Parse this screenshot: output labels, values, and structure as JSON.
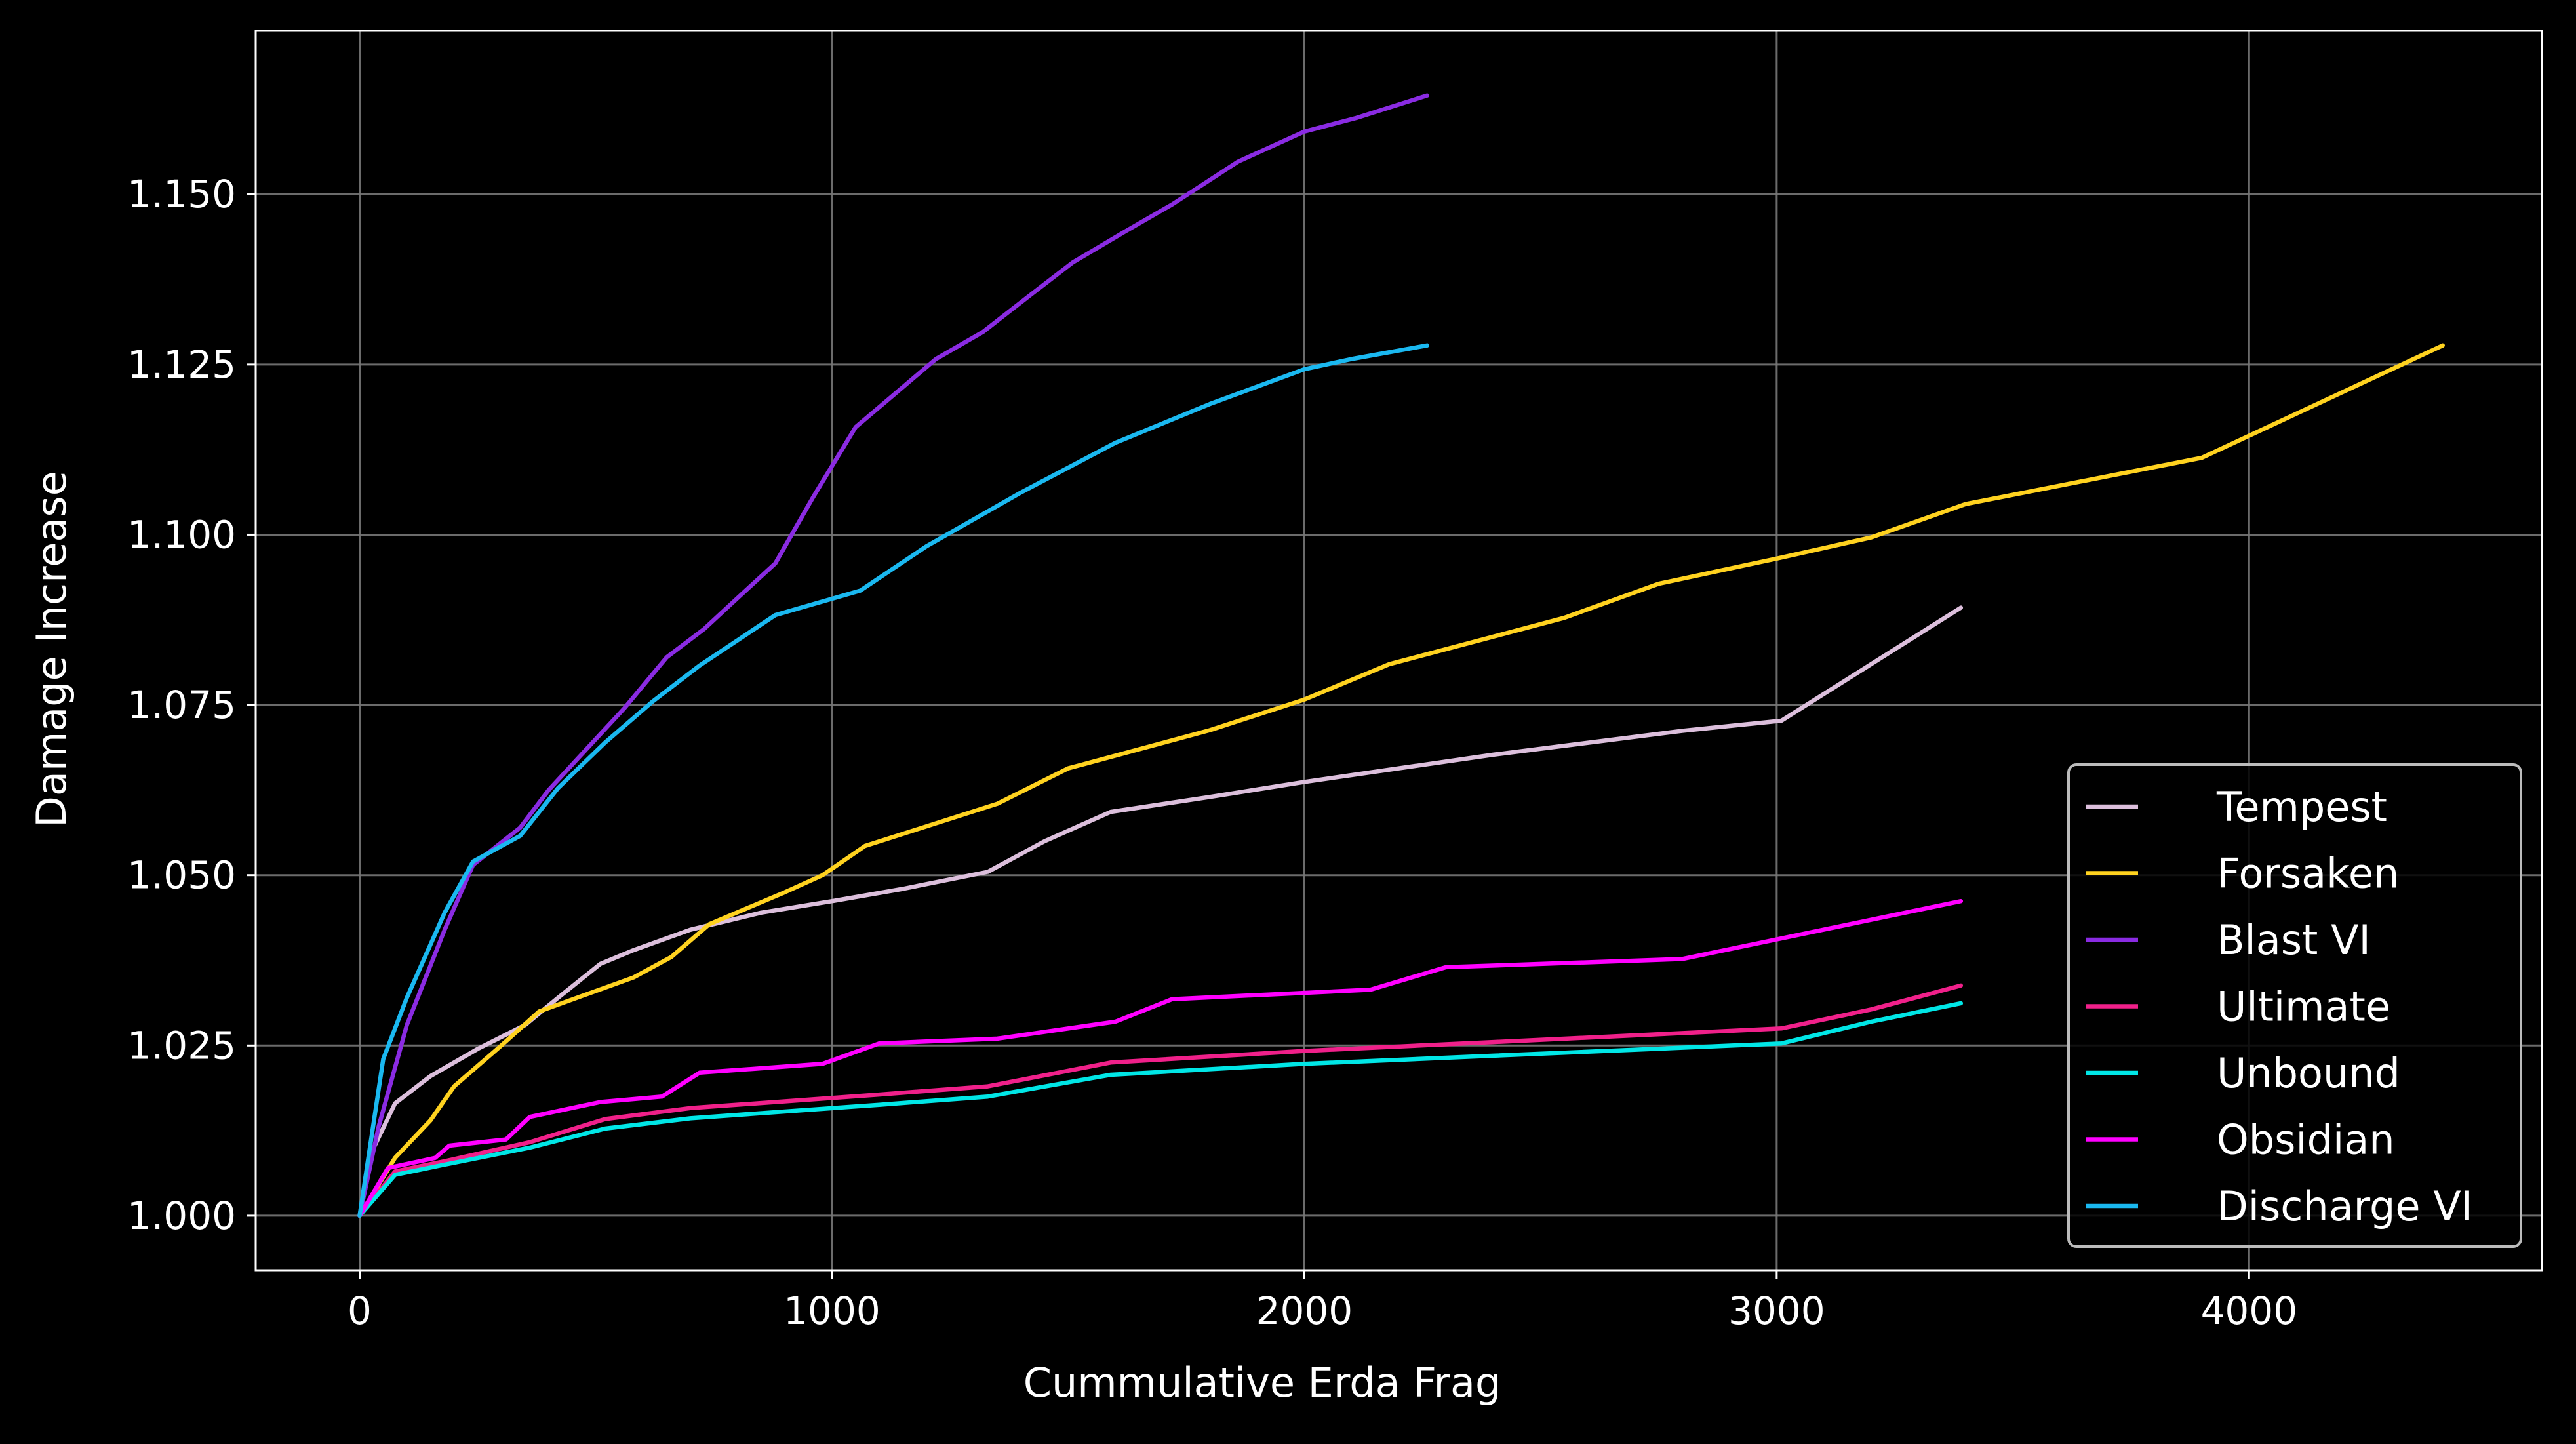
{
  "chart_data": {
    "type": "line",
    "title": "",
    "xlabel": "Cummulative Erda Frag",
    "ylabel": "Damage Increase",
    "xlim": [
      -220,
      4620
    ],
    "ylim": [
      0.992,
      1.174
    ],
    "xticks": [
      0,
      1000,
      2000,
      3000,
      4000
    ],
    "xtick_labels": [
      "0",
      "1000",
      "2000",
      "3000",
      "4000"
    ],
    "yticks": [
      1.0,
      1.025,
      1.05,
      1.075,
      1.1,
      1.125,
      1.15
    ],
    "ytick_labels": [
      "1.000",
      "1.025",
      "1.050",
      "1.075",
      "1.100",
      "1.125",
      "1.150"
    ],
    "grid": true,
    "legend_position": "lower-right",
    "colors": {
      "background": "#000000",
      "axes": "#ffffff",
      "grid": "#777777",
      "legend_border": "#bbbbbb"
    },
    "series": [
      {
        "name": "Tempest",
        "color": "#dcbfdc",
        "x": [
          0,
          30,
          75,
          150,
          250,
          350,
          420,
          510,
          580,
          700,
          850,
          1000,
          1150,
          1330,
          1450,
          1590,
          1800,
          2000,
          2400,
          2800,
          3010,
          3200,
          3390
        ],
        "y": [
          1.0,
          1.01,
          1.0165,
          1.0205,
          1.0245,
          1.028,
          1.032,
          1.037,
          1.039,
          1.042,
          1.0445,
          1.0462,
          1.048,
          1.0505,
          1.055,
          1.0593,
          1.0615,
          1.0637,
          1.0677,
          1.0712,
          1.0727,
          1.081,
          1.0893
        ]
      },
      {
        "name": "Forsaken",
        "color": "#ffd21f",
        "x": [
          0,
          75,
          150,
          200,
          300,
          380,
          480,
          580,
          660,
          740,
          900,
          980,
          1070,
          1350,
          1500,
          1800,
          2000,
          2180,
          2550,
          2750,
          3000,
          3200,
          3400,
          3900,
          4410
        ],
        "y": [
          1.0,
          1.0085,
          1.014,
          1.019,
          1.025,
          1.03,
          1.0325,
          1.035,
          1.038,
          1.0428,
          1.0475,
          1.05,
          1.0543,
          1.0605,
          1.0657,
          1.0713,
          1.0758,
          1.081,
          1.0878,
          1.0928,
          1.0965,
          1.0996,
          1.1045,
          1.1113,
          1.1278
        ]
      },
      {
        "name": "Blast VI",
        "color": "#8a2be2",
        "x": [
          0,
          40,
          100,
          180,
          240,
          340,
          400,
          480,
          560,
          650,
          730,
          800,
          880,
          960,
          1050,
          1130,
          1220,
          1320,
          1420,
          1510,
          1620,
          1720,
          1860,
          2000,
          2110,
          2260
        ],
        "y": [
          1.0,
          1.013,
          1.028,
          1.042,
          1.0515,
          1.057,
          1.0625,
          1.0685,
          1.0745,
          1.082,
          1.0862,
          1.0907,
          1.0958,
          1.1055,
          1.1158,
          1.1205,
          1.1258,
          1.1298,
          1.1352,
          1.14,
          1.1445,
          1.1485,
          1.1548,
          1.1592,
          1.1612,
          1.1645
        ]
      },
      {
        "name": "Ultimate",
        "color": "#f0208a",
        "x": [
          0,
          75,
          180,
          360,
          520,
          700,
          900,
          1100,
          1330,
          1590,
          2000,
          2400,
          3010,
          3200,
          3390
        ],
        "y": [
          1.0,
          1.0065,
          1.008,
          1.0108,
          1.0142,
          1.0158,
          1.0168,
          1.0178,
          1.019,
          1.0225,
          1.0242,
          1.0255,
          1.0275,
          1.0303,
          1.0338
        ]
      },
      {
        "name": "Unbound",
        "color": "#00e6e6",
        "x": [
          0,
          75,
          180,
          360,
          520,
          700,
          900,
          1100,
          1330,
          1590,
          2000,
          2400,
          3010,
          3200,
          3390
        ],
        "y": [
          1.0,
          1.006,
          1.0075,
          1.01,
          1.0128,
          1.0143,
          1.0153,
          1.0163,
          1.0175,
          1.0207,
          1.0223,
          1.0235,
          1.0253,
          1.0285,
          1.0312
        ]
      },
      {
        "name": "Obsidian",
        "color": "#ff00ff",
        "x": [
          0,
          60,
          160,
          190,
          310,
          360,
          510,
          640,
          720,
          980,
          1100,
          1350,
          1600,
          1720,
          2140,
          2300,
          2800,
          3390
        ],
        "y": [
          1.0,
          1.007,
          1.0085,
          1.0103,
          1.0112,
          1.0145,
          1.0167,
          1.0175,
          1.021,
          1.0223,
          1.0253,
          1.026,
          1.0285,
          1.0318,
          1.0332,
          1.0365,
          1.0377,
          1.0462
        ]
      },
      {
        "name": "Discharge VI",
        "color": "#1ab8f0",
        "x": [
          0,
          50,
          100,
          180,
          240,
          340,
          420,
          520,
          620,
          720,
          800,
          880,
          960,
          1060,
          1200,
          1400,
          1600,
          1800,
          2000,
          2100,
          2260
        ],
        "y": [
          1.0,
          1.023,
          1.032,
          1.0445,
          1.052,
          1.0558,
          1.0628,
          1.0695,
          1.0755,
          1.0808,
          1.0845,
          1.0882,
          1.0898,
          1.0918,
          1.0983,
          1.1062,
          1.1135,
          1.1192,
          1.1243,
          1.1258,
          1.1278
        ]
      }
    ]
  }
}
